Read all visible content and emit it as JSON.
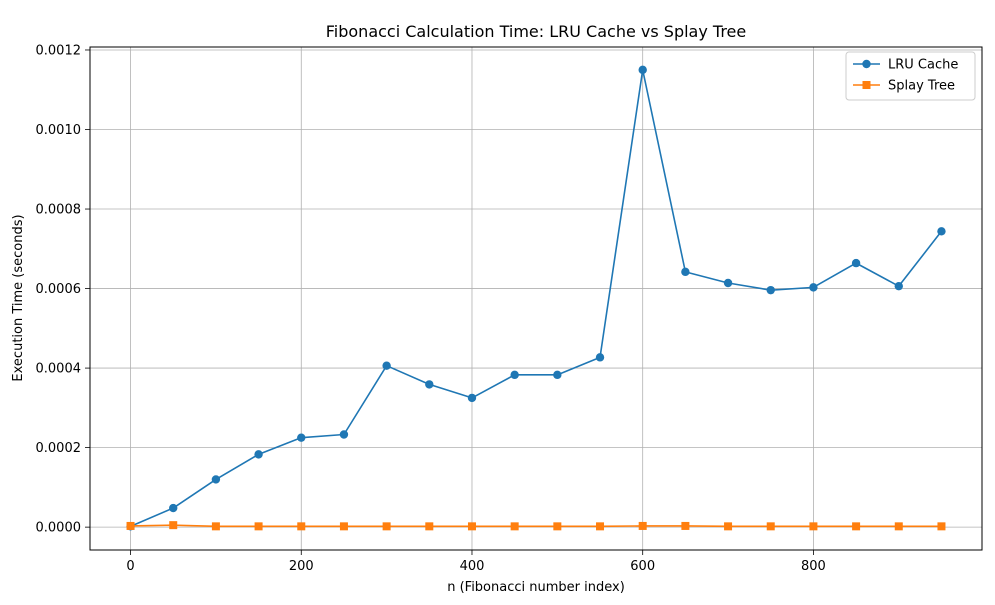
{
  "chart_data": {
    "type": "line",
    "title": "Fibonacci Calculation Time: LRU Cache vs Splay Tree",
    "xlabel": "n (Fibonacci number index)",
    "ylabel": "Execution Time (seconds)",
    "xlim": [
      -47.5,
      997.5
    ],
    "ylim": [
      -5.75e-05,
      0.0012075
    ],
    "xticks": [
      0,
      200,
      400,
      600,
      800
    ],
    "xtick_labels": [
      "0",
      "200",
      "400",
      "600",
      "800"
    ],
    "yticks": [
      0,
      0.0002,
      0.0004,
      0.0006,
      0.0008,
      0.001,
      0.0012
    ],
    "ytick_labels": [
      "0.0000",
      "0.0002",
      "0.0004",
      "0.0006",
      "0.0008",
      "0.0010",
      "0.0012"
    ],
    "grid": true,
    "legend_position": "top-right",
    "x": [
      0,
      50,
      100,
      150,
      200,
      250,
      300,
      350,
      400,
      450,
      500,
      550,
      600,
      650,
      700,
      750,
      800,
      850,
      900,
      950
    ],
    "series": [
      {
        "name": "LRU Cache",
        "color": "#1f77b4",
        "marker": "circle",
        "values": [
          2e-06,
          4.8e-05,
          0.00012,
          0.000183,
          0.000225,
          0.000233,
          0.000406,
          0.000359,
          0.000325,
          0.000383,
          0.000383,
          0.000427,
          0.00115,
          0.000642,
          0.000614,
          0.000596,
          0.000603,
          0.000664,
          0.000606,
          0.000744
        ]
      },
      {
        "name": "Splay Tree",
        "color": "#ff7f0e",
        "marker": "square",
        "values": [
          3e-06,
          5e-06,
          2e-06,
          2e-06,
          2e-06,
          2e-06,
          2e-06,
          2e-06,
          2e-06,
          2e-06,
          2e-06,
          2e-06,
          3e-06,
          3e-06,
          2e-06,
          2e-06,
          2e-06,
          2e-06,
          2e-06,
          2e-06
        ]
      }
    ]
  }
}
